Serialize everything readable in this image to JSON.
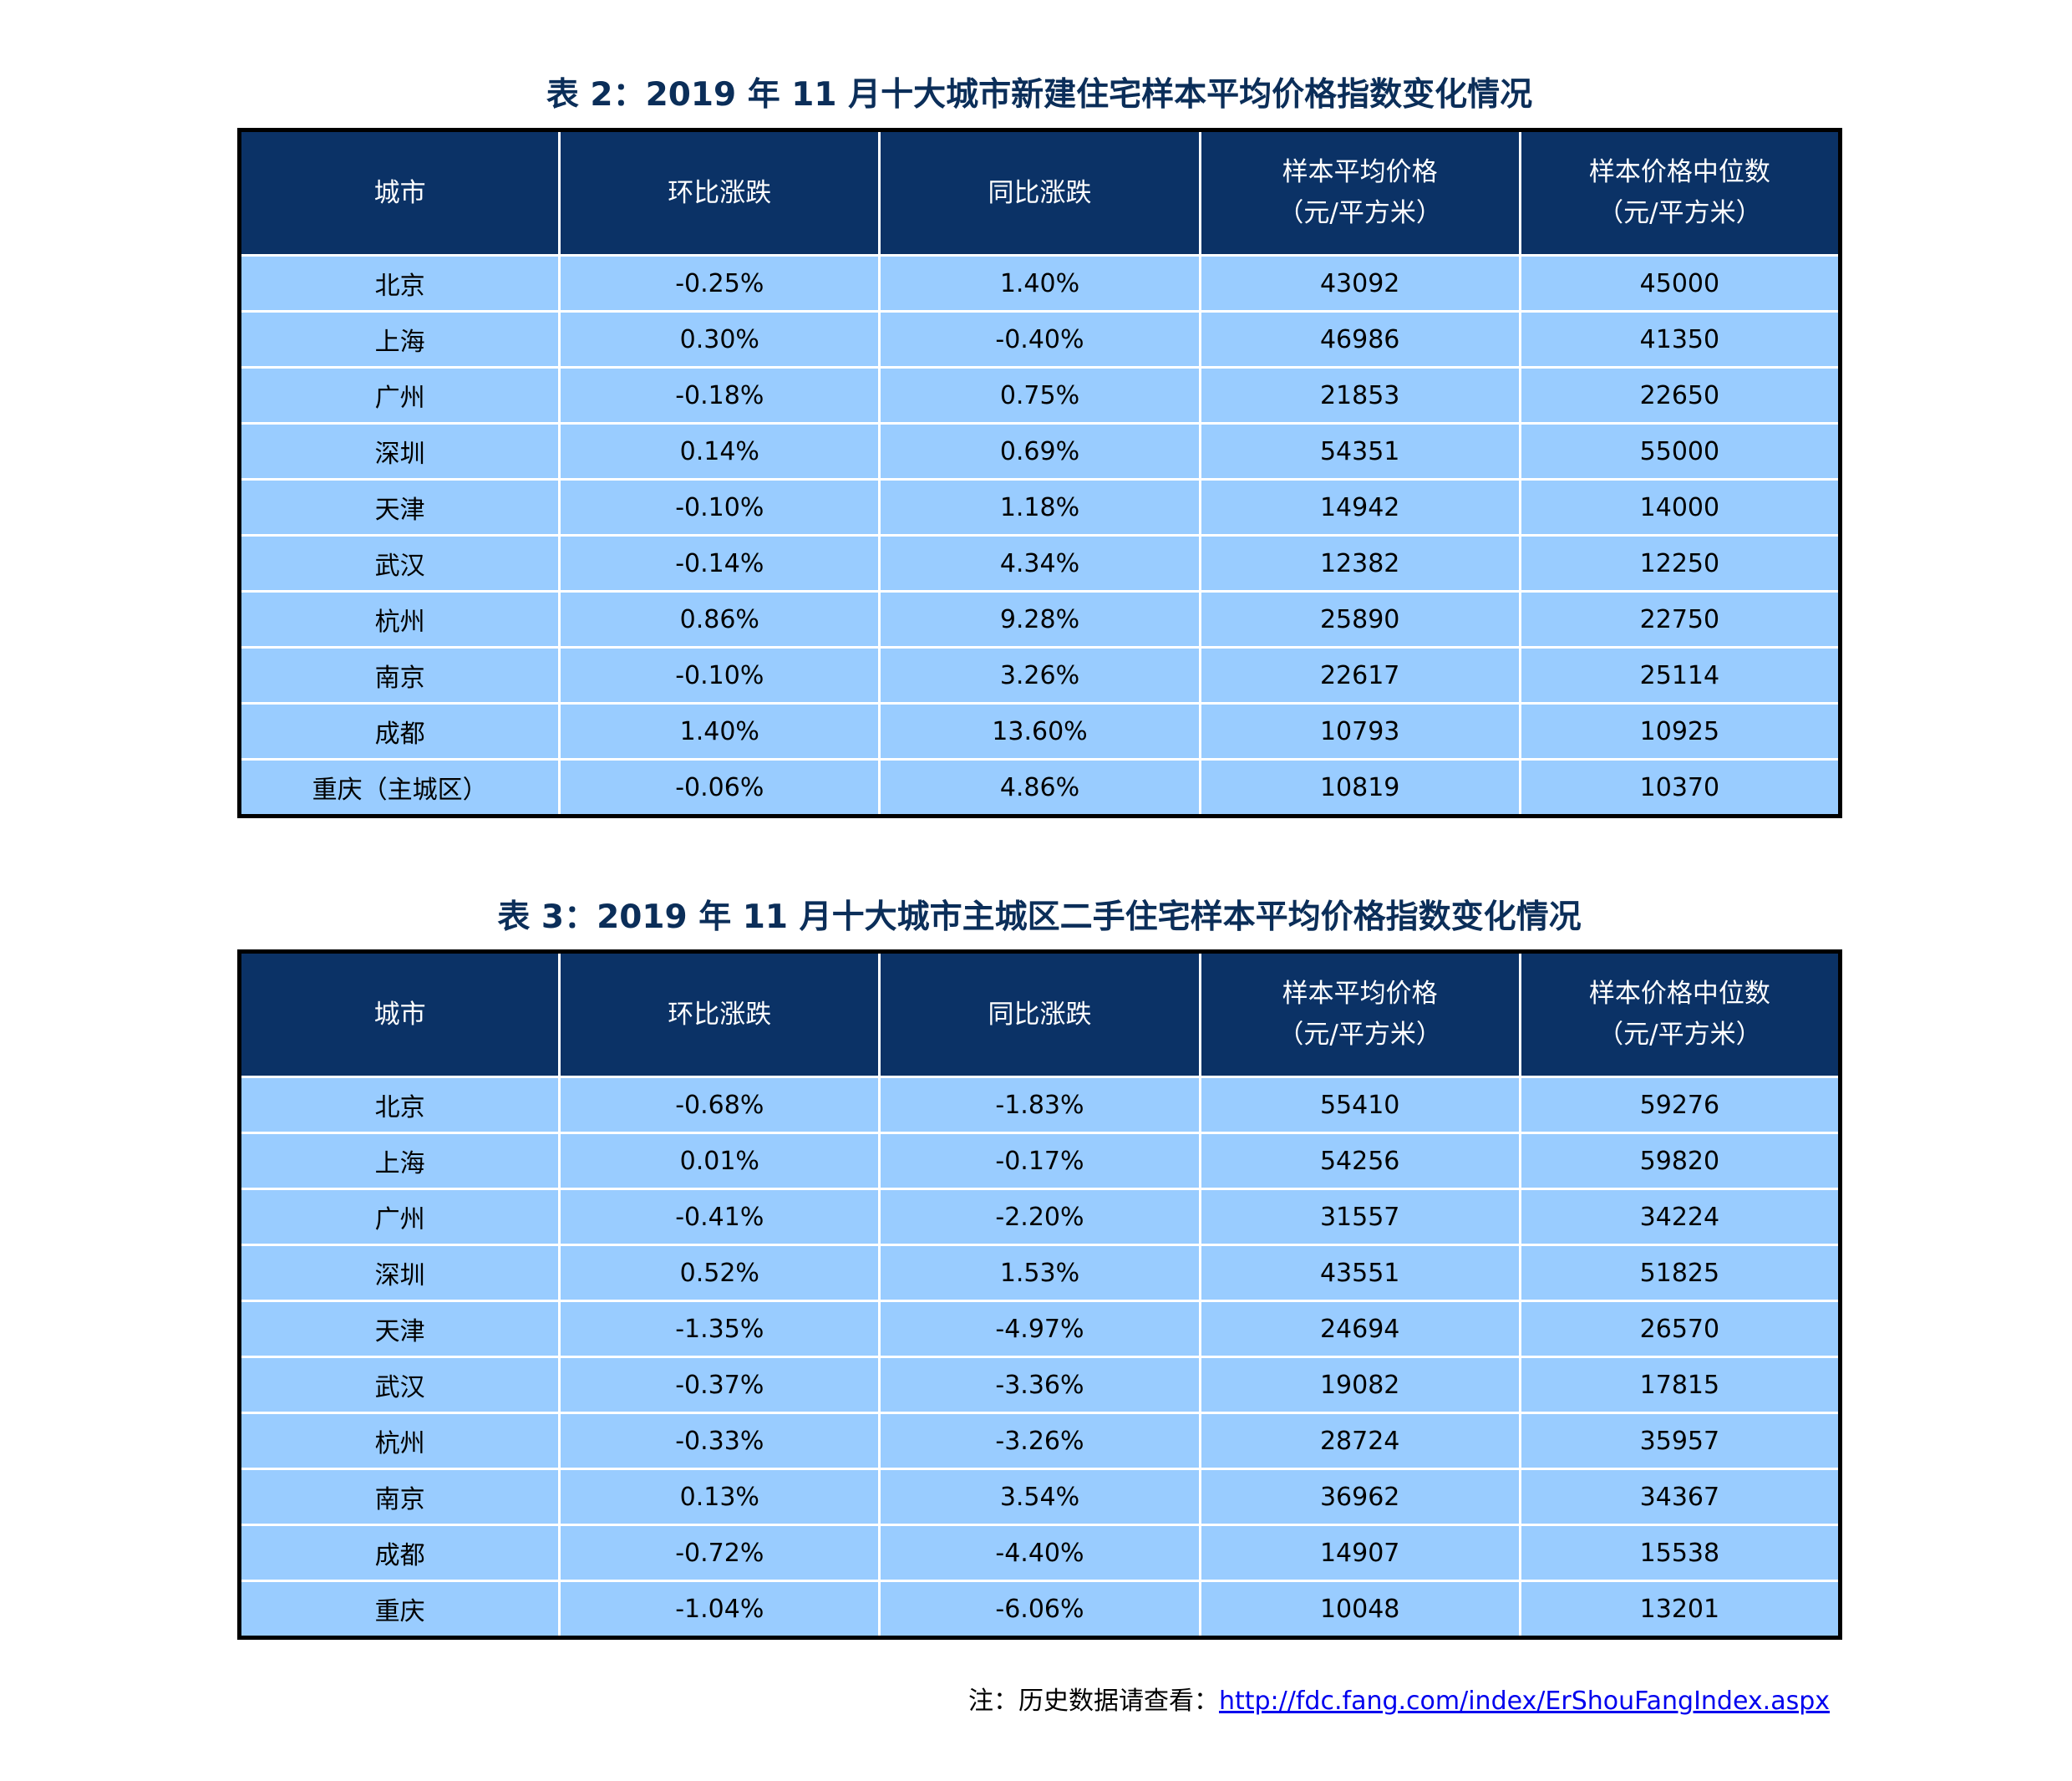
{
  "table2": {
    "title": "表 2：2019 年 11 月十大城市新建住宅样本平均价格指数变化情况",
    "headers": [
      {
        "line1": "城市",
        "line2": ""
      },
      {
        "line1": "环比涨跌",
        "line2": ""
      },
      {
        "line1": "同比涨跌",
        "line2": ""
      },
      {
        "line1": "样本平均价格",
        "line2": "（元/平方米）"
      },
      {
        "line1": "样本价格中位数",
        "line2": "（元/平方米）"
      }
    ],
    "rows": [
      [
        "北京",
        "-0.25%",
        "1.40%",
        "43092",
        "45000"
      ],
      [
        "上海",
        "0.30%",
        "-0.40%",
        "46986",
        "41350"
      ],
      [
        "广州",
        "-0.18%",
        "0.75%",
        "21853",
        "22650"
      ],
      [
        "深圳",
        "0.14%",
        "0.69%",
        "54351",
        "55000"
      ],
      [
        "天津",
        "-0.10%",
        "1.18%",
        "14942",
        "14000"
      ],
      [
        "武汉",
        "-0.14%",
        "4.34%",
        "12382",
        "12250"
      ],
      [
        "杭州",
        "0.86%",
        "9.28%",
        "25890",
        "22750"
      ],
      [
        "南京",
        "-0.10%",
        "3.26%",
        "22617",
        "25114"
      ],
      [
        "成都",
        "1.40%",
        "13.60%",
        "10793",
        "10925"
      ],
      [
        "重庆（主城区）",
        "-0.06%",
        "4.86%",
        "10819",
        "10370"
      ]
    ]
  },
  "table3": {
    "title": "表 3：2019 年 11 月十大城市主城区二手住宅样本平均价格指数变化情况",
    "headers": [
      {
        "line1": "城市",
        "line2": ""
      },
      {
        "line1": "环比涨跌",
        "line2": ""
      },
      {
        "line1": "同比涨跌",
        "line2": ""
      },
      {
        "line1": "样本平均价格",
        "line2": "（元/平方米）"
      },
      {
        "line1": "样本价格中位数",
        "line2": "（元/平方米）"
      }
    ],
    "rows": [
      [
        "北京",
        "-0.68%",
        "-1.83%",
        "55410",
        "59276"
      ],
      [
        "上海",
        "0.01%",
        "-0.17%",
        "54256",
        "59820"
      ],
      [
        "广州",
        "-0.41%",
        "-2.20%",
        "31557",
        "34224"
      ],
      [
        "深圳",
        "0.52%",
        "1.53%",
        "43551",
        "51825"
      ],
      [
        "天津",
        "-1.35%",
        "-4.97%",
        "24694",
        "26570"
      ],
      [
        "武汉",
        "-0.37%",
        "-3.36%",
        "19082",
        "17815"
      ],
      [
        "杭州",
        "-0.33%",
        "-3.26%",
        "28724",
        "35957"
      ],
      [
        "南京",
        "0.13%",
        "3.54%",
        "36962",
        "34367"
      ],
      [
        "成都",
        "-0.72%",
        "-4.40%",
        "14907",
        "15538"
      ],
      [
        "重庆",
        "-1.04%",
        "-6.06%",
        "10048",
        "13201"
      ]
    ]
  },
  "note": {
    "prefix": "注：历史数据请查看：",
    "link_text": "http://fdc.fang.com/index/ErShouFangIndex.aspx"
  }
}
